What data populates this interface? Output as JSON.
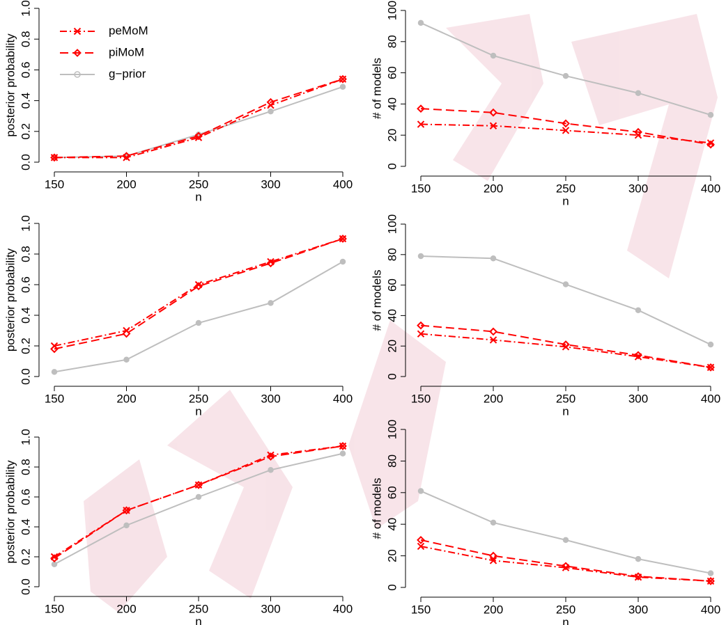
{
  "chart_data": [
    {
      "type": "line",
      "ylabel": "posterior probability",
      "xlabel": "n",
      "categories": [
        "150",
        "200",
        "250",
        "300",
        "400"
      ],
      "ylim": [
        0,
        1
      ],
      "yticks": [
        {
          "value": 0,
          "label": "0.0"
        },
        0.2,
        0.4,
        0.6,
        0.8,
        {
          "value": 1,
          "label": "1.0"
        }
      ],
      "legend": "top-left",
      "series": [
        {
          "name": "peMoM",
          "color": "#ff0000",
          "line_style": "dashdot",
          "marker": "x",
          "values": [
            0.03,
            0.03,
            0.16,
            0.37,
            0.54
          ]
        },
        {
          "name": "piMoM",
          "color": "#ff0000",
          "line_style": "dashed",
          "marker": "diamond",
          "values": [
            0.03,
            0.04,
            0.17,
            0.39,
            0.54
          ]
        },
        {
          "name": "g−prior",
          "color": "#bebebe",
          "line_style": "solid",
          "marker": "circle",
          "values": [
            0.03,
            0.04,
            0.18,
            0.33,
            0.49
          ]
        }
      ]
    },
    {
      "type": "line",
      "ylabel": "# of models",
      "xlabel": "n",
      "categories": [
        "150",
        "200",
        "250",
        "300",
        "400"
      ],
      "ylim": [
        0,
        100
      ],
      "yticks": [
        0,
        20,
        40,
        60,
        80,
        100
      ],
      "series": [
        {
          "color": "#ff0000",
          "line_style": "dashdot",
          "marker": "x",
          "values": [
            27,
            26,
            23,
            20,
            15
          ]
        },
        {
          "color": "#ff0000",
          "line_style": "dashed",
          "marker": "diamond",
          "values": [
            37,
            34.5,
            27.5,
            22,
            14
          ]
        },
        {
          "color": "#bebebe",
          "line_style": "solid",
          "marker": "circle",
          "values": [
            92,
            71,
            58,
            47,
            33
          ]
        }
      ]
    },
    {
      "type": "line",
      "ylabel": "posterior probability",
      "xlabel": "n",
      "categories": [
        "150",
        "200",
        "250",
        "300",
        "400"
      ],
      "ylim": [
        0,
        1
      ],
      "yticks": [
        {
          "value": 0,
          "label": "0.0"
        },
        0.2,
        0.4,
        0.6,
        0.8,
        {
          "value": 1,
          "label": "1.0"
        }
      ],
      "series": [
        {
          "color": "#ff0000",
          "line_style": "dashdot",
          "marker": "x",
          "values": [
            0.2,
            0.3,
            0.6,
            0.75,
            0.9
          ]
        },
        {
          "color": "#ff0000",
          "line_style": "dashed",
          "marker": "diamond",
          "values": [
            0.18,
            0.28,
            0.59,
            0.74,
            0.9
          ]
        },
        {
          "color": "#bebebe",
          "line_style": "solid",
          "marker": "circle",
          "values": [
            0.03,
            0.11,
            0.35,
            0.48,
            0.75
          ]
        }
      ]
    },
    {
      "type": "line",
      "ylabel": "# of models",
      "xlabel": "n",
      "categories": [
        "150",
        "200",
        "250",
        "300",
        "400"
      ],
      "ylim": [
        0,
        100
      ],
      "yticks": [
        0,
        20,
        40,
        60,
        80,
        100
      ],
      "series": [
        {
          "color": "#ff0000",
          "line_style": "dashdot",
          "marker": "x",
          "values": [
            28,
            24,
            19.5,
            13,
            6
          ]
        },
        {
          "color": "#ff0000",
          "line_style": "dashed",
          "marker": "diamond",
          "values": [
            33.5,
            29.5,
            21,
            14,
            6
          ]
        },
        {
          "color": "#bebebe",
          "line_style": "solid",
          "marker": "circle",
          "values": [
            79,
            77.5,
            60.5,
            43.5,
            21
          ]
        }
      ]
    },
    {
      "type": "line",
      "ylabel": "posterior probability",
      "xlabel": "n",
      "categories": [
        "150",
        "200",
        "250",
        "300",
        "400"
      ],
      "ylim": [
        0,
        1
      ],
      "yticks": [
        {
          "value": 0,
          "label": "0.0"
        },
        0.2,
        0.4,
        0.6,
        0.8,
        {
          "value": 1,
          "label": "1.0"
        }
      ],
      "series": [
        {
          "color": "#ff0000",
          "line_style": "dashdot",
          "marker": "x",
          "values": [
            0.2,
            0.51,
            0.68,
            0.88,
            0.94
          ]
        },
        {
          "color": "#ff0000",
          "line_style": "dashed",
          "marker": "diamond",
          "values": [
            0.19,
            0.51,
            0.68,
            0.87,
            0.94
          ]
        },
        {
          "color": "#bebebe",
          "line_style": "solid",
          "marker": "circle",
          "values": [
            0.15,
            0.41,
            0.6,
            0.78,
            0.89
          ]
        }
      ]
    },
    {
      "type": "line",
      "ylabel": "# of models",
      "xlabel": "n",
      "categories": [
        "150",
        "200",
        "250",
        "300",
        "400"
      ],
      "ylim": [
        0,
        100
      ],
      "yticks": [
        0,
        20,
        40,
        60,
        80,
        100
      ],
      "series": [
        {
          "color": "#ff0000",
          "line_style": "dashdot",
          "marker": "x",
          "values": [
            26,
            17,
            12.5,
            6.5,
            4
          ]
        },
        {
          "color": "#ff0000",
          "line_style": "dashed",
          "marker": "diamond",
          "values": [
            30,
            20,
            13.5,
            7,
            4
          ]
        },
        {
          "color": "#bebebe",
          "line_style": "solid",
          "marker": "circle",
          "values": [
            61,
            41,
            30,
            18,
            9
          ]
        }
      ]
    }
  ]
}
